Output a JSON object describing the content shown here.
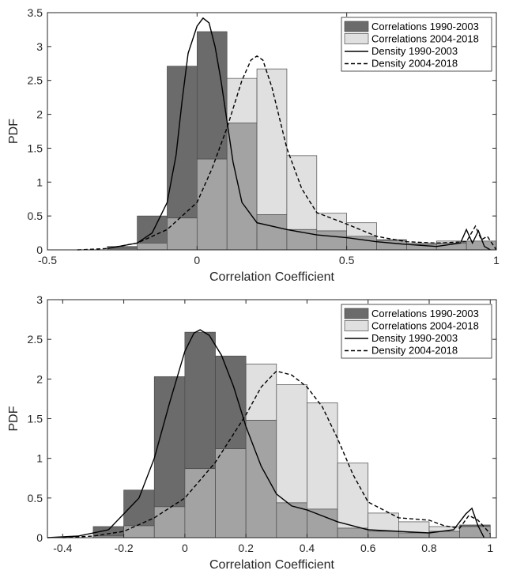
{
  "colors": {
    "old_bar": "#6b6b6b",
    "new_bar": "#e0e0e0",
    "overlap_bar": "#a3a3a3",
    "bar_edge": "#4a4a4a",
    "axis": "#262626"
  },
  "chart_data": [
    {
      "type": "bar",
      "xlabel": "Correlation Coefficient",
      "ylabel": "PDF",
      "xlim": [
        -0.5,
        1
      ],
      "ylim": [
        0,
        3.5
      ],
      "xticks": [
        -0.5,
        0,
        0.5,
        1
      ],
      "xtick_labels": [
        "-0.5",
        "0",
        "0.5",
        "1"
      ],
      "yticks": [
        0,
        0.5,
        1,
        1.5,
        2,
        2.5,
        3,
        3.5
      ],
      "ytick_labels": [
        "0",
        "0.5",
        "1",
        "1.5",
        "2",
        "2.5",
        "3",
        "3.5"
      ],
      "legend_position": "top-right",
      "legend": [
        "Correlations 1990-2003",
        "Correlations 2004-2018",
        "Density 1990-2003",
        "Density 2004-2018"
      ],
      "bin_edges": [
        -0.3,
        -0.2,
        -0.1,
        0,
        0.1,
        0.2,
        0.3,
        0.4,
        0.5,
        0.6,
        0.7,
        0.8,
        0.9,
        1.0
      ],
      "series": [
        {
          "name": "Correlations 1990-2003",
          "values": [
            0.05,
            0.5,
            2.71,
            3.22,
            1.87,
            0.52,
            0.3,
            0.28,
            0.2,
            0.15,
            0.08,
            0.1,
            0.13
          ]
        },
        {
          "name": "Correlations 2004-2018",
          "values": [
            0.02,
            0.1,
            0.47,
            1.34,
            2.53,
            2.67,
            1.39,
            0.54,
            0.4,
            0.14,
            0.1,
            0.13,
            0.13
          ]
        }
      ],
      "density": [
        {
          "name": "Density 1990-2003",
          "style": "solid",
          "x": [
            -0.3,
            -0.2,
            -0.15,
            -0.1,
            -0.07,
            -0.05,
            -0.03,
            0,
            0.02,
            0.04,
            0.06,
            0.08,
            0.1,
            0.12,
            0.15,
            0.2,
            0.3,
            0.4,
            0.5,
            0.6,
            0.7,
            0.8,
            0.88,
            0.9,
            0.92,
            0.94,
            0.96,
            0.98
          ],
          "y": [
            0.02,
            0.1,
            0.25,
            0.7,
            1.4,
            2.2,
            2.9,
            3.3,
            3.42,
            3.35,
            3.0,
            2.5,
            1.9,
            1.3,
            0.7,
            0.4,
            0.3,
            0.22,
            0.18,
            0.12,
            0.08,
            0.05,
            0.1,
            0.3,
            0.1,
            0.28,
            0.05,
            0
          ]
        },
        {
          "name": "Density 2004-2018",
          "style": "dashed",
          "x": [
            -0.4,
            -0.3,
            -0.2,
            -0.1,
            0,
            0.05,
            0.1,
            0.15,
            0.18,
            0.2,
            0.22,
            0.25,
            0.3,
            0.35,
            0.4,
            0.5,
            0.6,
            0.7,
            0.8,
            0.9,
            0.93,
            0.95,
            0.97,
            1.0
          ],
          "y": [
            0,
            0.02,
            0.1,
            0.3,
            0.7,
            1.2,
            1.8,
            2.5,
            2.8,
            2.86,
            2.8,
            2.4,
            1.5,
            0.9,
            0.55,
            0.38,
            0.2,
            0.12,
            0.1,
            0.12,
            0.35,
            0.15,
            0.2,
            0
          ]
        }
      ]
    },
    {
      "type": "bar",
      "xlabel": "Correlation Coefficient",
      "ylabel": "PDF",
      "xlim": [
        -0.45,
        1.02
      ],
      "ylim": [
        0,
        3
      ],
      "xticks": [
        -0.4,
        -0.2,
        0,
        0.2,
        0.4,
        0.6,
        0.8,
        1
      ],
      "xtick_labels": [
        "-0.4",
        "-0.2",
        "0",
        "0.2",
        "0.4",
        "0.6",
        "0.8",
        "1"
      ],
      "yticks": [
        0,
        0.5,
        1,
        1.5,
        2,
        2.5,
        3
      ],
      "ytick_labels": [
        "0",
        "0.5",
        "1",
        "1.5",
        "2",
        "2.5",
        "3"
      ],
      "legend_position": "top-right",
      "legend": [
        "Correlations 1990-2003",
        "Correlations 2004-2018",
        "Density 1990-2003",
        "Density 2004-2018"
      ],
      "bin_edges": [
        -0.3,
        -0.2,
        -0.1,
        0,
        0.1,
        0.2,
        0.3,
        0.4,
        0.5,
        0.6,
        0.7,
        0.8,
        0.9,
        1.0
      ],
      "series": [
        {
          "name": "Correlations 1990-2003",
          "values": [
            0.14,
            0.6,
            2.03,
            2.59,
            2.29,
            1.48,
            0.44,
            0.36,
            0.12,
            0.08,
            0.06,
            0.08,
            0.16
          ]
        },
        {
          "name": "Correlations 2004-2018",
          "values": [
            0.02,
            0.15,
            0.39,
            0.87,
            1.12,
            2.19,
            1.93,
            1.7,
            0.94,
            0.31,
            0.2,
            0.14,
            0.14
          ]
        }
      ],
      "density": [
        {
          "name": "Density 1990-2003",
          "style": "solid",
          "x": [
            -0.45,
            -0.35,
            -0.25,
            -0.15,
            -0.1,
            -0.05,
            0,
            0.03,
            0.05,
            0.08,
            0.12,
            0.16,
            0.2,
            0.25,
            0.3,
            0.35,
            0.4,
            0.5,
            0.6,
            0.7,
            0.8,
            0.88,
            0.92,
            0.94,
            0.96,
            0.98
          ],
          "y": [
            0,
            0.02,
            0.1,
            0.5,
            1.0,
            1.7,
            2.35,
            2.58,
            2.62,
            2.55,
            2.3,
            1.9,
            1.4,
            0.9,
            0.55,
            0.4,
            0.35,
            0.2,
            0.1,
            0.08,
            0.06,
            0.1,
            0.3,
            0.37,
            0.15,
            0
          ]
        },
        {
          "name": "Density 2004-2018",
          "style": "dashed",
          "x": [
            -0.4,
            -0.3,
            -0.2,
            -0.1,
            0,
            0.1,
            0.2,
            0.25,
            0.3,
            0.35,
            0.4,
            0.45,
            0.5,
            0.55,
            0.6,
            0.7,
            0.8,
            0.85,
            0.9,
            0.93,
            0.96,
            1.0
          ],
          "y": [
            0,
            0.02,
            0.08,
            0.25,
            0.5,
            0.95,
            1.55,
            1.9,
            2.1,
            2.05,
            1.9,
            1.65,
            1.25,
            0.8,
            0.45,
            0.25,
            0.22,
            0.15,
            0.12,
            0.28,
            0.22,
            0.05
          ]
        }
      ]
    }
  ]
}
